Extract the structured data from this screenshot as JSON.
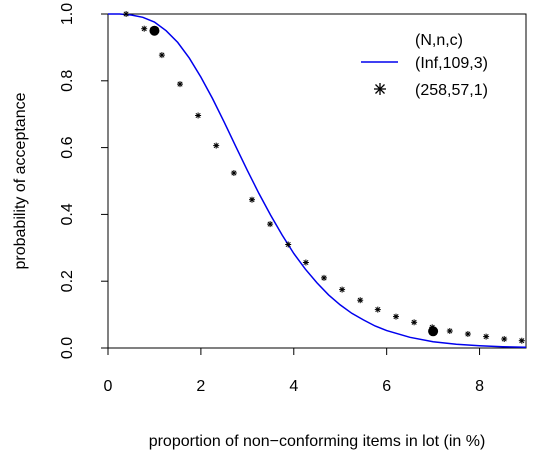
{
  "chart_data": {
    "type": "line",
    "title": "",
    "xlabel": "proportion of non−conforming items in lot (in %)",
    "ylabel": "probability of acceptance",
    "xlim": [
      0,
      9
    ],
    "ylim": [
      0,
      1
    ],
    "x_ticks": [
      0,
      2,
      4,
      6,
      8
    ],
    "x_tick_labels": [
      "0",
      "2",
      "4",
      "6",
      "8"
    ],
    "y_ticks": [
      0,
      0.2,
      0.4,
      0.6,
      0.8,
      1.0
    ],
    "y_tick_labels": [
      "0.0",
      "0.2",
      "0.4",
      "0.6",
      "0.8",
      "1.0"
    ],
    "grid": false,
    "legend": {
      "placement": "top-right",
      "header": "(N,n,c)"
    },
    "series": [
      {
        "name": "(Inf,109,3)",
        "style": "line",
        "color": "#0000ee",
        "x": [
          0,
          0.25,
          0.5,
          0.75,
          1.0,
          1.25,
          1.5,
          1.75,
          2.0,
          2.25,
          2.5,
          2.75,
          3.0,
          3.25,
          3.5,
          3.75,
          4.0,
          4.25,
          4.5,
          4.75,
          5.0,
          5.25,
          5.5,
          5.75,
          6.0,
          6.5,
          7.0,
          7.5,
          8.0,
          8.5,
          9.0
        ],
        "y": [
          1.0,
          1.0,
          0.997,
          0.99,
          0.976,
          0.95,
          0.915,
          0.868,
          0.811,
          0.747,
          0.677,
          0.604,
          0.532,
          0.463,
          0.398,
          0.338,
          0.283,
          0.236,
          0.195,
          0.159,
          0.129,
          0.104,
          0.084,
          0.066,
          0.052,
          0.032,
          0.019,
          0.011,
          0.007,
          0.004,
          0.002
        ]
      },
      {
        "name": "(258,57,1)",
        "style": "points",
        "color": "#000000",
        "x": [
          0.39,
          0.78,
          1.16,
          1.55,
          1.94,
          2.33,
          2.71,
          3.1,
          3.49,
          3.88,
          4.26,
          4.65,
          5.04,
          5.43,
          5.81,
          6.2,
          6.59,
          6.98,
          7.36,
          7.75,
          8.14,
          8.53,
          8.91
        ],
        "y": [
          1.0,
          0.956,
          0.877,
          0.79,
          0.696,
          0.606,
          0.524,
          0.444,
          0.371,
          0.31,
          0.256,
          0.21,
          0.175,
          0.143,
          0.115,
          0.094,
          0.077,
          0.062,
          0.051,
          0.042,
          0.034,
          0.027,
          0.022
        ]
      }
    ],
    "highlight_points": {
      "color": "#000000",
      "points": [
        {
          "x": 1.0,
          "y": 0.95
        },
        {
          "x": 7.0,
          "y": 0.05
        }
      ]
    }
  }
}
